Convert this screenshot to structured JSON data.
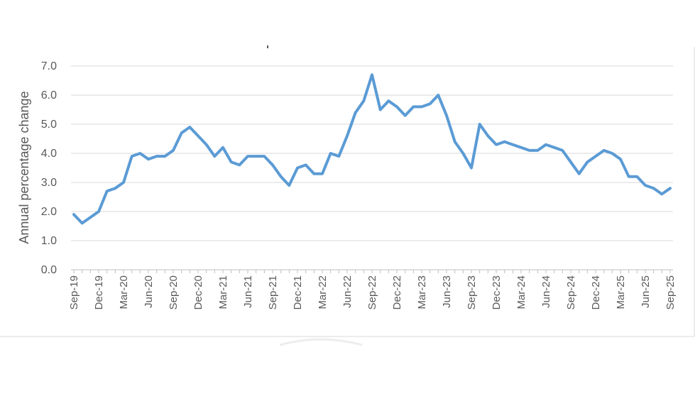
{
  "chart_data": {
    "type": "line",
    "ylabel": "Annual percentage change",
    "ylim": [
      0,
      7
    ],
    "yticks": [
      "0.0",
      "1.0",
      "2.0",
      "3.0",
      "4.0",
      "5.0",
      "6.0",
      "7.0"
    ],
    "grid": "horizontal",
    "legend": "none",
    "x": [
      "Sep-19",
      "Oct-19",
      "Nov-19",
      "Dec-19",
      "Jan-20",
      "Feb-20",
      "Mar-20",
      "Apr-20",
      "May-20",
      "Jun-20",
      "Jul-20",
      "Aug-20",
      "Sep-20",
      "Oct-20",
      "Nov-20",
      "Dec-20",
      "Jan-21",
      "Feb-21",
      "Mar-21",
      "Apr-21",
      "May-21",
      "Jun-21",
      "Jul-21",
      "Aug-21",
      "Sep-21",
      "Oct-21",
      "Nov-21",
      "Dec-21",
      "Jan-22",
      "Feb-22",
      "Mar-22",
      "Apr-22",
      "May-22",
      "Jun-22",
      "Jul-22",
      "Aug-22",
      "Sep-22",
      "Oct-22",
      "Nov-22",
      "Dec-22",
      "Jan-23",
      "Feb-23",
      "Mar-23",
      "Apr-23",
      "May-23",
      "Jun-23",
      "Jul-23",
      "Aug-23",
      "Sep-23",
      "Oct-23",
      "Nov-23",
      "Dec-23",
      "Jan-24",
      "Feb-24",
      "Mar-24",
      "Apr-24",
      "May-24",
      "Jun-24",
      "Jul-24",
      "Aug-24",
      "Sep-24",
      "Oct-24",
      "Nov-24",
      "Dec-24",
      "Jan-25",
      "Feb-25",
      "Mar-25",
      "Apr-25",
      "May-25",
      "Jun-25",
      "Jul-25",
      "Aug-25",
      "Sep-25"
    ],
    "xtick_labels": [
      "Sep-19",
      "Dec-19",
      "Mar-20",
      "Jun-20",
      "Sep-20",
      "Dec-20",
      "Mar-21",
      "Jun-21",
      "Sep-21",
      "Dec-21",
      "Mar-22",
      "Jun-22",
      "Sep-22",
      "Dec-22",
      "Mar-23",
      "Jun-23",
      "Sep-23",
      "Dec-23",
      "Mar-24",
      "Jun-24",
      "Sep-24",
      "Dec-24",
      "Mar-25",
      "Jun-25",
      "Sep-25"
    ],
    "series": [
      {
        "color": "#5b9bd5",
        "values": [
          1.9,
          1.6,
          1.8,
          2.0,
          2.7,
          2.8,
          3.0,
          3.9,
          4.0,
          3.8,
          3.9,
          3.9,
          4.1,
          4.7,
          4.9,
          4.6,
          4.3,
          3.9,
          4.2,
          3.7,
          3.6,
          3.9,
          3.9,
          3.9,
          3.6,
          3.2,
          2.9,
          3.5,
          3.6,
          3.3,
          3.3,
          4.0,
          3.9,
          4.6,
          5.4,
          5.8,
          6.7,
          5.5,
          5.8,
          5.6,
          5.3,
          5.6,
          5.6,
          5.7,
          6.0,
          5.3,
          4.4,
          4.0,
          3.5,
          5.0,
          4.6,
          4.3,
          4.4,
          4.3,
          4.2,
          4.1,
          4.1,
          4.3,
          4.2,
          4.1,
          3.7,
          3.3,
          3.7,
          3.9,
          4.1,
          4.0,
          3.8,
          3.2,
          3.2,
          2.9,
          2.8,
          2.6,
          2.8
        ]
      }
    ]
  }
}
